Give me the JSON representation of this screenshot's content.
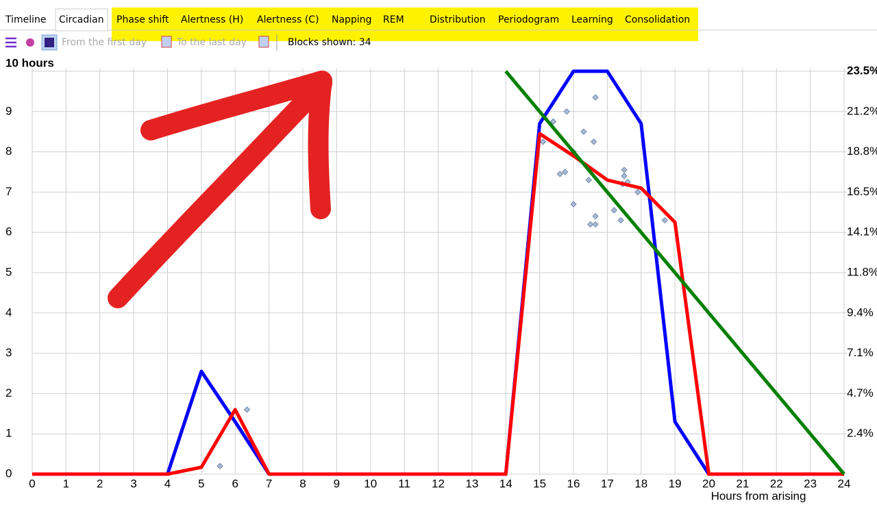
{
  "tabs": [
    "Timeline",
    "Circadian",
    "Phase shift",
    "Alertness (H)",
    "Alertness (C)",
    "Napping",
    "REM",
    "Distribution",
    "Periodogram",
    "Learning",
    "Consolidation"
  ],
  "toolbar": {
    "from": "From the first day",
    "to": "To the last day",
    "blocks": "Blocks shown: 34"
  },
  "chart_data": {
    "type": "line",
    "x_label": "Hours from arising",
    "grid": true,
    "x": [
      0,
      1,
      2,
      3,
      4,
      5,
      6,
      7,
      8,
      9,
      10,
      11,
      12,
      13,
      14,
      15,
      16,
      17,
      18,
      19,
      20,
      21,
      22,
      23,
      24
    ],
    "xlim": [
      0,
      24
    ],
    "xticks": [
      0,
      1,
      2,
      3,
      4,
      5,
      6,
      7,
      8,
      9,
      10,
      11,
      12,
      13,
      14,
      15,
      16,
      17,
      18,
      19,
      20,
      21,
      22,
      23,
      24
    ],
    "ylim": [
      0,
      10
    ],
    "yticks": [
      0,
      1,
      2,
      3,
      4,
      5,
      6,
      7,
      8,
      9,
      {
        "value": 10,
        "label": "10 hours"
      }
    ],
    "y2lim": [
      0,
      23.5
    ],
    "y2ticks": [
      {
        "value": 2.35,
        "label": "2.4%"
      },
      {
        "value": 4.7,
        "label": "4.7%"
      },
      {
        "value": 7.05,
        "label": "7.1%"
      },
      {
        "value": 9.4,
        "label": "9.4%"
      },
      {
        "value": 11.75,
        "label": "11.8%"
      },
      {
        "value": 14.1,
        "label": "14.1%"
      },
      {
        "value": 16.45,
        "label": "16.5%"
      },
      {
        "value": 18.8,
        "label": "18.8%"
      },
      {
        "value": 21.15,
        "label": "21.2%"
      },
      {
        "value": 23.5,
        "label": "23.5%"
      }
    ],
    "series": [
      {
        "color": "#ff0000",
        "values": [
          0,
          0,
          0,
          0,
          0,
          0.17,
          1.6,
          0,
          0,
          0,
          0,
          0,
          0,
          0,
          0,
          8.45,
          7.9,
          7.3,
          7.1,
          6.25,
          0,
          0,
          0,
          0,
          0
        ]
      },
      {
        "color": "#0000ff",
        "values": [
          0,
          0,
          0,
          0,
          0,
          2.55,
          1.3,
          0,
          0,
          0,
          0,
          0,
          0,
          0,
          0,
          8.7,
          10,
          10,
          8.7,
          1.3,
          0,
          0,
          0,
          0,
          0
        ]
      },
      {
        "color": "#008000",
        "values": [
          null,
          null,
          null,
          null,
          null,
          null,
          null,
          null,
          null,
          null,
          null,
          null,
          null,
          null,
          10,
          9,
          8,
          7,
          6,
          5,
          4,
          3,
          2,
          1,
          0
        ]
      },
      {
        "type": "scatter",
        "color": "#a9bcd8",
        "x": [
          5.55,
          6.35,
          15.1,
          15.4,
          15.6,
          15.75,
          15.8,
          16.0,
          16.3,
          16.45,
          16.6,
          16.65,
          16.0,
          16.5,
          16.65,
          16.65,
          17.2,
          17.4,
          17.45,
          17.5,
          17.5,
          17.6,
          17.9,
          18.7
        ],
        "values": [
          0.2,
          1.6,
          8.25,
          8.75,
          7.45,
          7.5,
          9.0,
          8.0,
          8.5,
          7.3,
          8.25,
          9.35,
          6.7,
          6.2,
          6.2,
          6.4,
          6.55,
          6.3,
          7.2,
          7.4,
          7.55,
          7.25,
          7.0,
          6.3
        ]
      }
    ]
  }
}
